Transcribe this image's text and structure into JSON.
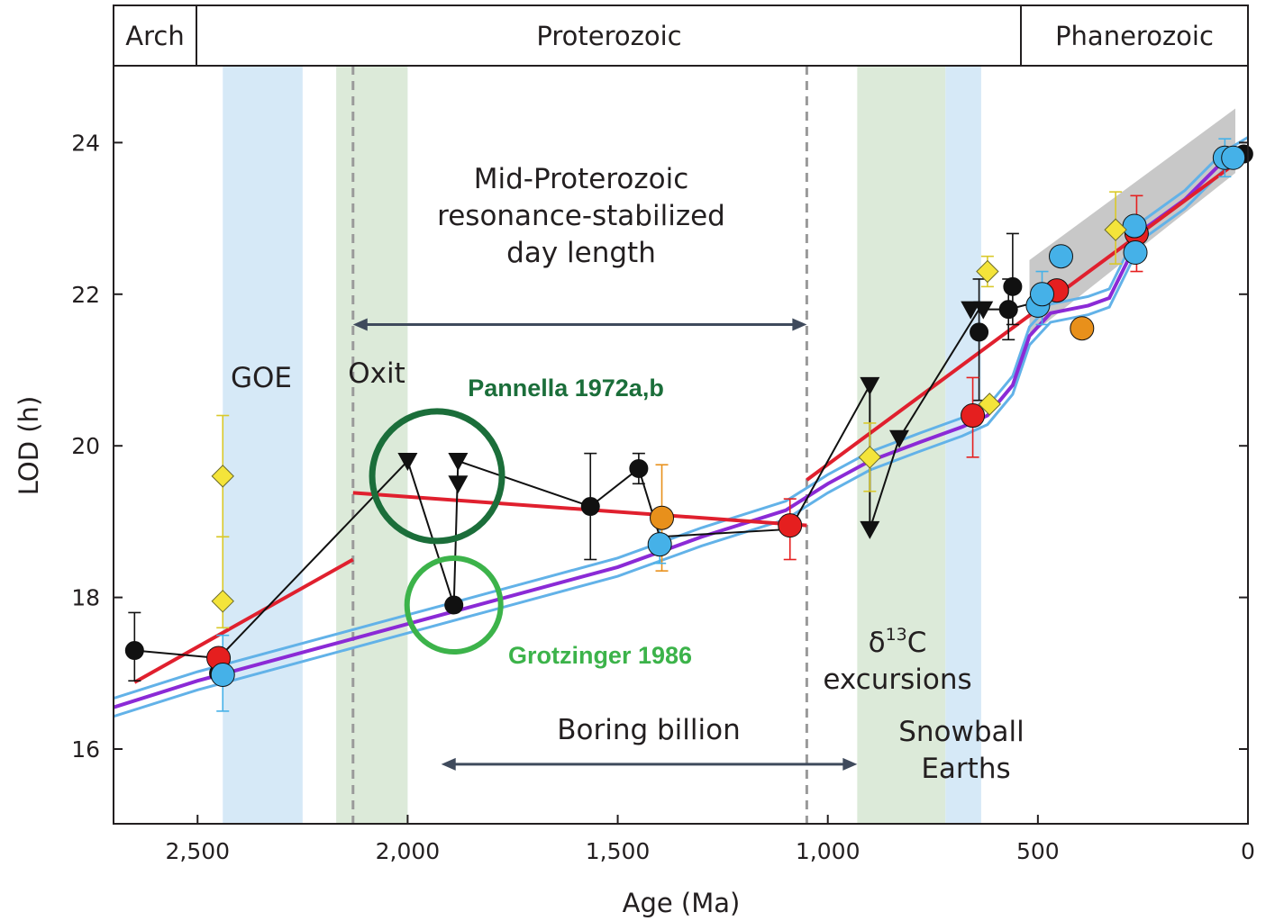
{
  "chart_data": {
    "type": "scatter",
    "xlabel": "Age (Ma)",
    "ylabel": "LOD (h)",
    "xlim": [
      2700,
      0
    ],
    "ylim": [
      15,
      25
    ],
    "xticks": [
      2500,
      2000,
      1500,
      1000,
      500,
      0
    ],
    "xtick_labels": [
      "2,500",
      "2,000",
      "1,500",
      "1,000",
      "500",
      "0"
    ],
    "yticks": [
      16,
      18,
      20,
      22,
      24
    ],
    "yticks_labels": [
      "16",
      "18",
      "20",
      "22",
      "24"
    ],
    "grid": false,
    "eras": [
      {
        "name": "Arch",
        "from": 2700,
        "to": 2500
      },
      {
        "name": "Proterozoic",
        "from": 2500,
        "to": 541
      },
      {
        "name": "Phanerozoic",
        "from": 541,
        "to": 0
      }
    ],
    "bands": [
      {
        "name": "GOE",
        "from": 2440,
        "to": 2250,
        "color": "#d6e9f7"
      },
      {
        "name": "Oxit",
        "from": 2170,
        "to": 2000,
        "color": "#dcead9"
      },
      {
        "name": "δ13C excursions",
        "from": 930,
        "to": 720,
        "color": "#dcead9"
      },
      {
        "name": "Snowball Earths",
        "from": 720,
        "to": 635,
        "color": "#d6e9f7"
      }
    ],
    "dashed_lines": [
      2130,
      1050
    ],
    "annotations": {
      "goe": "GOE",
      "oxit": "Oxit",
      "mid_proterozoic": [
        "Mid-Proterozoic",
        "resonance-stabilized",
        "day length"
      ],
      "boring_billion": "Boring billion",
      "d13c_delta": "δ",
      "d13c_sup": "13",
      "d13c_c": "C",
      "d13c_excursions": "excursions",
      "snowball": [
        "Snowball",
        "Earths"
      ],
      "pannella": "Pannella 1972a,b",
      "grotzinger": "Grotzinger 1986"
    },
    "arrows": [
      {
        "name": "mid-proterozoic-arrow",
        "from": 2130,
        "to": 1050,
        "y": 21.6
      },
      {
        "name": "boring-billion-arrow",
        "from": 1920,
        "to": 930,
        "y": 15.8
      }
    ],
    "circles": [
      {
        "name": "pannella-circle",
        "x": 1930,
        "y": 19.6,
        "color": "#1b6e3a"
      },
      {
        "name": "grotzinger-circle",
        "x": 1890,
        "y": 17.9,
        "color": "#3cb34a"
      }
    ],
    "series": [
      {
        "marker": "circle",
        "color": "#111111",
        "points": [
          {
            "x": 2650,
            "y": 17.3,
            "err": [
              16.9,
              17.8
            ]
          },
          {
            "x": 2450,
            "y": 17.0
          },
          {
            "x": 1890,
            "y": 17.9
          },
          {
            "x": 1565,
            "y": 19.2,
            "err": [
              18.5,
              19.9
            ]
          },
          {
            "x": 1450,
            "y": 19.7,
            "err": [
              19.5,
              19.9
            ]
          },
          {
            "x": 640,
            "y": 21.5,
            "err": [
              20.6,
              22.2
            ]
          },
          {
            "x": 570,
            "y": 21.8,
            "err": [
              21.4,
              22.2
            ]
          },
          {
            "x": 560,
            "y": 22.1,
            "err": [
              21.6,
              22.8
            ]
          },
          {
            "x": 10,
            "y": 23.85
          }
        ]
      },
      {
        "marker": "triangle-down",
        "color": "#111111",
        "points": [
          {
            "x": 2000,
            "y": 19.8
          },
          {
            "x": 1880,
            "y": 19.8
          },
          {
            "x": 1880,
            "y": 19.5
          },
          {
            "x": 900,
            "y": 20.8
          },
          {
            "x": 900,
            "y": 18.9
          },
          {
            "x": 830,
            "y": 20.1
          },
          {
            "x": 660,
            "y": 21.8
          },
          {
            "x": 630,
            "y": 21.8
          }
        ]
      },
      {
        "marker": "circle",
        "color": "#e51f1f",
        "points": [
          {
            "x": 2450,
            "y": 17.2
          },
          {
            "x": 1090,
            "y": 18.95,
            "err": [
              18.5,
              19.3
            ]
          },
          {
            "x": 655,
            "y": 20.4,
            "err": [
              19.85,
              20.9
            ]
          },
          {
            "x": 455,
            "y": 22.05
          },
          {
            "x": 265,
            "y": 22.8,
            "err": [
              22.3,
              23.3
            ]
          }
        ]
      },
      {
        "marker": "circle",
        "color": "#e8901b",
        "points": [
          {
            "x": 1395,
            "y": 19.05,
            "err": [
              18.35,
              19.75
            ]
          },
          {
            "x": 395,
            "y": 21.55
          }
        ]
      },
      {
        "marker": "circle",
        "color": "#45b1e8",
        "points": [
          {
            "x": 2440,
            "y": 16.98,
            "err": [
              16.5,
              17.5
            ]
          },
          {
            "x": 1400,
            "y": 18.7,
            "err": [
              18.45,
              18.95
            ]
          },
          {
            "x": 500,
            "y": 21.85
          },
          {
            "x": 490,
            "y": 22.0,
            "err": [
              21.6,
              22.3
            ]
          },
          {
            "x": 445,
            "y": 22.5
          },
          {
            "x": 270,
            "y": 22.9
          },
          {
            "x": 268,
            "y": 22.55
          },
          {
            "x": 55,
            "y": 23.8,
            "err": [
              23.55,
              24.05
            ]
          },
          {
            "x": 35,
            "y": 23.8
          }
        ]
      },
      {
        "marker": "diamond",
        "color": "#f4e43a",
        "points": [
          {
            "x": 2440,
            "y": 19.6,
            "err": [
              18.8,
              20.4
            ]
          },
          {
            "x": 2440,
            "y": 17.95,
            "err": [
              17.6,
              18.8
            ]
          },
          {
            "x": 900,
            "y": 19.85,
            "err": [
              19.4,
              20.3
            ]
          },
          {
            "x": 620,
            "y": 22.3,
            "err": [
              22.1,
              22.5
            ]
          },
          {
            "x": 615,
            "y": 20.55
          },
          {
            "x": 315,
            "y": 22.85,
            "err": [
              22.4,
              23.35
            ]
          }
        ]
      }
    ],
    "connecting_line": [
      [
        2650,
        17.3
      ],
      [
        2450,
        17.2
      ],
      [
        2000,
        19.8
      ],
      [
        1890,
        17.9
      ],
      [
        1880,
        19.8
      ],
      [
        1565,
        19.2
      ],
      [
        1450,
        19.7
      ],
      [
        1400,
        18.8
      ],
      [
        1090,
        18.9
      ],
      [
        900,
        20.8
      ],
      [
        900,
        18.9
      ],
      [
        830,
        20.1
      ],
      [
        640,
        21.8
      ],
      [
        570,
        21.8
      ],
      [
        500,
        21.9
      ]
    ],
    "fit_lines": [
      {
        "name": "red-fit-early",
        "color": "#e0202e",
        "points": [
          [
            2650,
            16.88
          ],
          [
            2130,
            18.5
          ]
        ]
      },
      {
        "name": "red-fit-mid",
        "color": "#e0202e",
        "points": [
          [
            2130,
            19.38
          ],
          [
            1050,
            18.95
          ]
        ]
      },
      {
        "name": "red-fit-late",
        "color": "#e0202e",
        "points": [
          [
            1050,
            19.55
          ],
          [
            0,
            23.85
          ]
        ]
      }
    ],
    "model_curve": {
      "color": "#8b2ad6",
      "band_color": "#62b2e8",
      "points": [
        [
          2700,
          16.55
        ],
        [
          2500,
          16.9
        ],
        [
          2200,
          17.35
        ],
        [
          2000,
          17.65
        ],
        [
          1800,
          17.95
        ],
        [
          1500,
          18.4
        ],
        [
          1300,
          18.8
        ],
        [
          1100,
          19.15
        ],
        [
          1000,
          19.5
        ],
        [
          900,
          19.8
        ],
        [
          780,
          20.05
        ],
        [
          680,
          20.25
        ],
        [
          620,
          20.4
        ],
        [
          560,
          20.8
        ],
        [
          520,
          21.45
        ],
        [
          470,
          21.75
        ],
        [
          380,
          21.85
        ],
        [
          330,
          21.95
        ],
        [
          290,
          22.4
        ],
        [
          250,
          22.85
        ],
        [
          150,
          23.25
        ],
        [
          60,
          23.75
        ],
        [
          0,
          23.95
        ]
      ],
      "band_offset": 0.12
    },
    "gray_band": {
      "points_upper": [
        [
          520,
          22.45
        ],
        [
          30,
          24.45
        ]
      ],
      "points_lower": [
        [
          520,
          21.45
        ],
        [
          30,
          23.6
        ]
      ],
      "color": "#c8c8c8"
    }
  }
}
